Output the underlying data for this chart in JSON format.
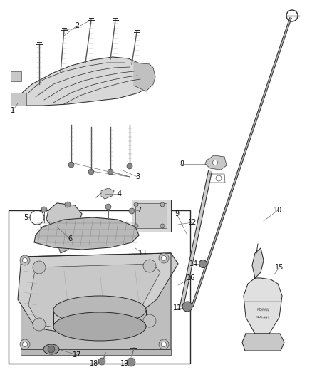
{
  "bg_color": "#ffffff",
  "fig_width": 4.38,
  "fig_height": 5.33,
  "line_color": "#2a2a2a",
  "light_gray": "#cccccc",
  "med_gray": "#aaaaaa",
  "dark_gray": "#888888",
  "part_fill": "#e0e0e0",
  "part_fill2": "#d0d0d0",
  "part_fill3": "#c0c0c0"
}
